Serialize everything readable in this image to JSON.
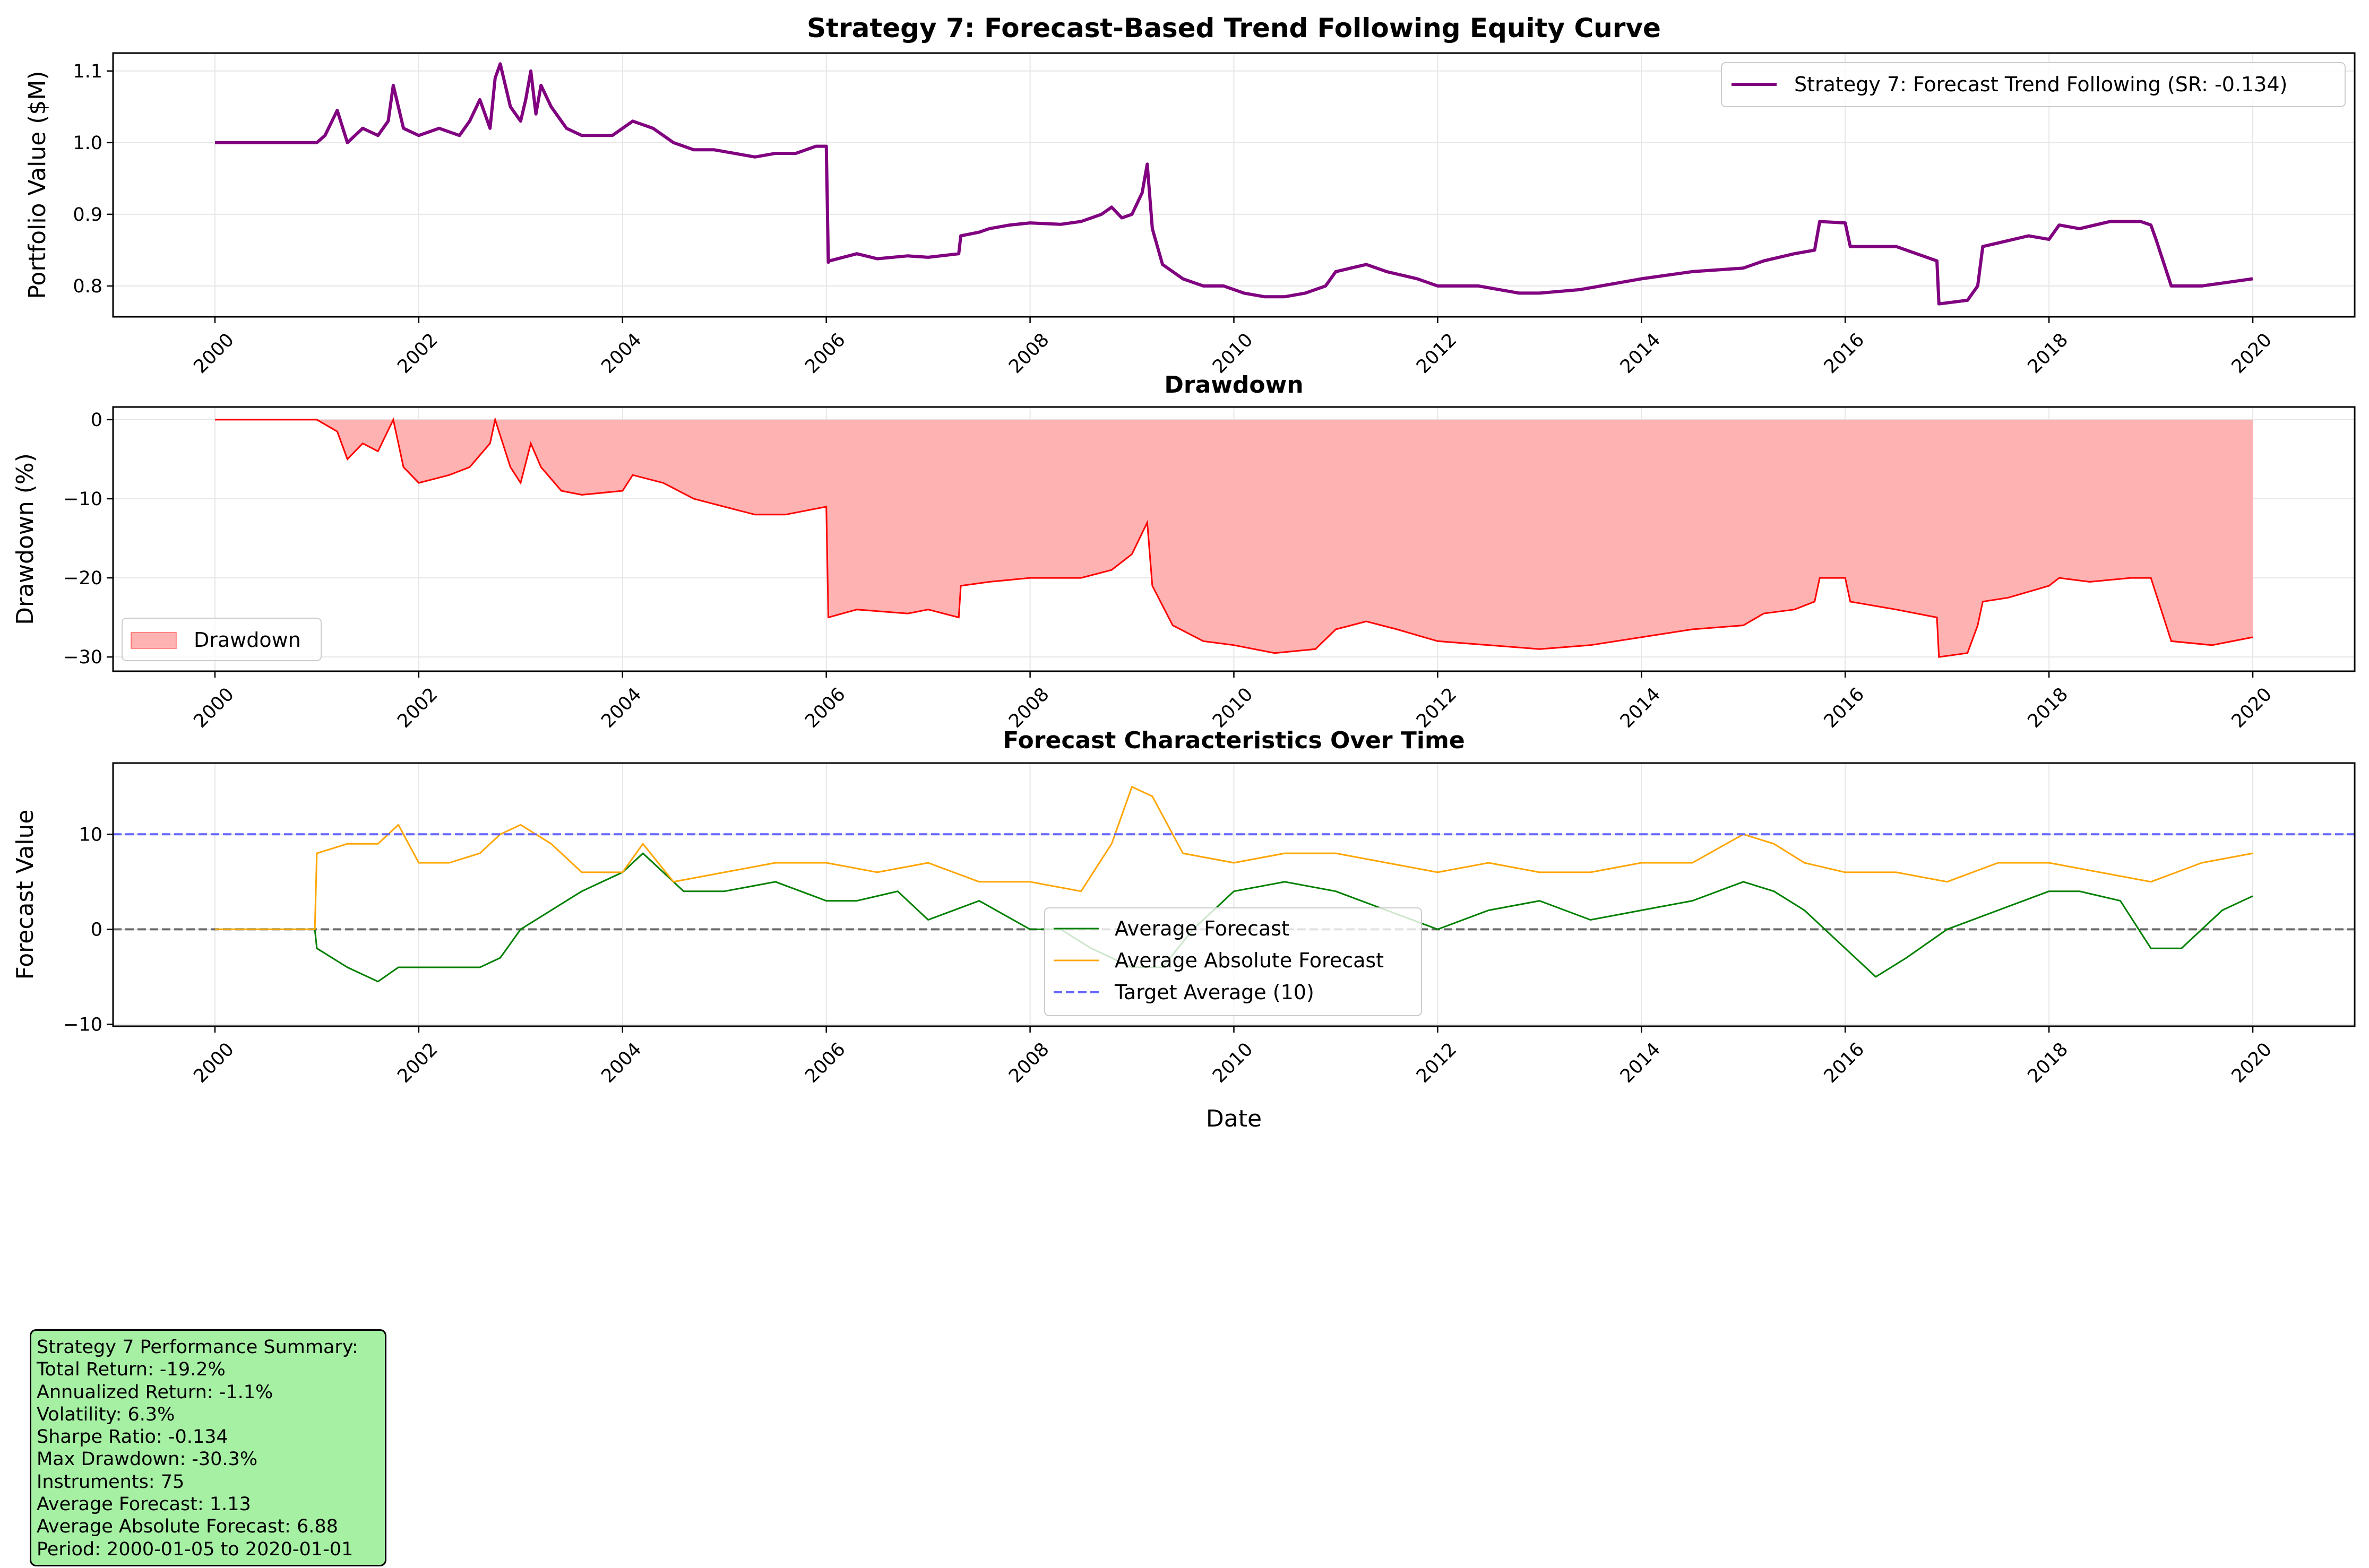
{
  "chart_data": [
    {
      "type": "line",
      "title": "Strategy 7: Forecast-Based Trend Following Equity Curve",
      "xlabel": "",
      "ylabel": "Portfolio Value ($M)",
      "xlim": [
        1999.0,
        2021.0
      ],
      "ylim": [
        0.757,
        1.125
      ],
      "x_ticks": [
        "2000",
        "2002",
        "2004",
        "2006",
        "2008",
        "2010",
        "2012",
        "2014",
        "2016",
        "2018",
        "2020"
      ],
      "y_ticks": [
        "0.8",
        "0.9",
        "1.0",
        "1.1"
      ],
      "grid": true,
      "legend_position": "top-right",
      "series": [
        {
          "name": "Strategy 7: Forecast Trend Following (SR: -0.134)",
          "color": "#800080",
          "x": [
            2000.0,
            2001.0,
            2001.08,
            2001.2,
            2001.3,
            2001.45,
            2001.6,
            2001.7,
            2001.75,
            2001.85,
            2002.0,
            2002.2,
            2002.4,
            2002.5,
            2002.6,
            2002.7,
            2002.75,
            2002.8,
            2002.9,
            2003.0,
            2003.05,
            2003.1,
            2003.15,
            2003.2,
            2003.3,
            2003.45,
            2003.6,
            2003.9,
            2004.1,
            2004.3,
            2004.5,
            2004.7,
            2004.9,
            2005.1,
            2005.3,
            2005.5,
            2005.7,
            2005.8,
            2005.9,
            2006.0,
            2006.02,
            2006.03,
            2006.3,
            2006.5,
            2006.8,
            2007.0,
            2007.3,
            2007.32,
            2007.5,
            2007.6,
            2007.8,
            2008.0,
            2008.3,
            2008.5,
            2008.7,
            2008.8,
            2008.9,
            2009.0,
            2009.1,
            2009.15,
            2009.2,
            2009.3,
            2009.5,
            2009.7,
            2009.9,
            2010.1,
            2010.3,
            2010.5,
            2010.7,
            2010.9,
            2011.0,
            2011.3,
            2011.5,
            2011.8,
            2012.0,
            2012.4,
            2012.8,
            2013.0,
            2013.4,
            2013.8,
            2014.0,
            2014.5,
            2015.0,
            2015.2,
            2015.5,
            2015.7,
            2015.75,
            2016.0,
            2016.05,
            2016.5,
            2016.9,
            2016.92,
            2017.2,
            2017.3,
            2017.35,
            2017.5,
            2017.8,
            2018.0,
            2018.1,
            2018.3,
            2018.6,
            2018.9,
            2019.0,
            2019.05,
            2019.2,
            2019.5,
            2020.0
          ],
          "values": [
            1.0,
            1.0,
            1.01,
            1.045,
            1.0,
            1.02,
            1.01,
            1.03,
            1.08,
            1.02,
            1.01,
            1.02,
            1.01,
            1.03,
            1.06,
            1.02,
            1.09,
            1.11,
            1.05,
            1.03,
            1.06,
            1.1,
            1.04,
            1.08,
            1.05,
            1.02,
            1.01,
            1.01,
            1.03,
            1.02,
            1.0,
            0.99,
            0.99,
            0.985,
            0.98,
            0.985,
            0.985,
            0.99,
            0.995,
            0.995,
            0.833,
            0.835,
            0.845,
            0.838,
            0.842,
            0.84,
            0.845,
            0.87,
            0.875,
            0.88,
            0.885,
            0.888,
            0.886,
            0.89,
            0.9,
            0.91,
            0.895,
            0.9,
            0.93,
            0.97,
            0.88,
            0.83,
            0.81,
            0.8,
            0.8,
            0.79,
            0.785,
            0.785,
            0.79,
            0.8,
            0.82,
            0.83,
            0.82,
            0.81,
            0.8,
            0.8,
            0.79,
            0.79,
            0.795,
            0.805,
            0.81,
            0.82,
            0.825,
            0.835,
            0.845,
            0.85,
            0.89,
            0.888,
            0.855,
            0.855,
            0.835,
            0.775,
            0.78,
            0.8,
            0.855,
            0.86,
            0.87,
            0.865,
            0.885,
            0.88,
            0.89,
            0.89,
            0.885,
            0.865,
            0.8,
            0.8,
            0.81
          ]
        }
      ]
    },
    {
      "type": "area",
      "title": "Drawdown",
      "xlabel": "",
      "ylabel": "Drawdown (%)",
      "xlim": [
        1999.0,
        2021.0
      ],
      "ylim": [
        -31.8,
        1.6
      ],
      "x_ticks": [
        "2000",
        "2002",
        "2004",
        "2006",
        "2008",
        "2010",
        "2012",
        "2014",
        "2016",
        "2018",
        "2020"
      ],
      "y_ticks": [
        "0",
        "−10",
        "−20",
        "−30"
      ],
      "grid": true,
      "legend_position": "lower-left",
      "series": [
        {
          "name": "Drawdown",
          "color": "#ff0000",
          "fill_color": "#ffb2b2",
          "x": [
            2000.0,
            2001.0,
            2001.2,
            2001.3,
            2001.45,
            2001.6,
            2001.75,
            2001.85,
            2002.0,
            2002.3,
            2002.5,
            2002.7,
            2002.75,
            2002.9,
            2003.0,
            2003.1,
            2003.2,
            2003.4,
            2003.6,
            2004.0,
            2004.1,
            2004.4,
            2004.7,
            2005.0,
            2005.3,
            2005.6,
            2005.8,
            2006.0,
            2006.02,
            2006.3,
            2006.8,
            2007.0,
            2007.3,
            2007.32,
            2007.6,
            2008.0,
            2008.5,
            2008.8,
            2009.0,
            2009.15,
            2009.2,
            2009.4,
            2009.7,
            2010.0,
            2010.4,
            2010.8,
            2011.0,
            2011.3,
            2011.6,
            2012.0,
            2012.5,
            2013.0,
            2013.5,
            2014.0,
            2014.5,
            2015.0,
            2015.2,
            2015.5,
            2015.7,
            2015.75,
            2016.0,
            2016.05,
            2016.5,
            2016.9,
            2016.92,
            2017.2,
            2017.3,
            2017.35,
            2017.6,
            2018.0,
            2018.1,
            2018.4,
            2018.8,
            2019.0,
            2019.05,
            2019.2,
            2019.6,
            2020.0
          ],
          "values": [
            0,
            0,
            -1.5,
            -5,
            -3,
            -4,
            0,
            -6,
            -8,
            -7,
            -6,
            -3,
            0,
            -6,
            -8,
            -3,
            -6,
            -9,
            -9.5,
            -9,
            -7,
            -8,
            -10,
            -11,
            -12,
            -12,
            -11.5,
            -11,
            -25,
            -24,
            -24.5,
            -24,
            -25,
            -21,
            -20.5,
            -20,
            -20,
            -19,
            -17,
            -13,
            -21,
            -26,
            -28,
            -28.5,
            -29.5,
            -29,
            -26.5,
            -25.5,
            -26.5,
            -28,
            -28.5,
            -29,
            -28.5,
            -27.5,
            -26.5,
            -26,
            -24.5,
            -24,
            -23,
            -20,
            -20,
            -23,
            -24,
            -25,
            -30,
            -29.5,
            -26,
            -23,
            -22.5,
            -21,
            -20,
            -20.5,
            -20,
            -20,
            -22,
            -28,
            -28.5,
            -27.5
          ]
        }
      ]
    },
    {
      "type": "line",
      "title": "Forecast Characteristics Over Time",
      "xlabel": "Date",
      "ylabel": "Forecast Value",
      "xlim": [
        1999.0,
        2021.0
      ],
      "ylim": [
        -10.2,
        17.5
      ],
      "x_ticks": [
        "2000",
        "2002",
        "2004",
        "2006",
        "2008",
        "2010",
        "2012",
        "2014",
        "2016",
        "2018",
        "2020"
      ],
      "y_ticks": [
        "−10",
        "0",
        "10"
      ],
      "grid": true,
      "legend_position": "lower-center",
      "series": [
        {
          "name": "Average Forecast",
          "color": "#008000",
          "x": [
            2000.0,
            2000.98,
            2001.0,
            2001.3,
            2001.6,
            2001.8,
            2002.0,
            2002.3,
            2002.6,
            2002.8,
            2003.0,
            2003.3,
            2003.6,
            2004.0,
            2004.2,
            2004.4,
            2004.6,
            2005.0,
            2005.5,
            2006.0,
            2006.3,
            2006.7,
            2007.0,
            2007.5,
            2008.0,
            2008.3,
            2008.6,
            2009.0,
            2009.3,
            2009.6,
            2010.0,
            2010.5,
            2011.0,
            2011.5,
            2012.0,
            2012.5,
            2013.0,
            2013.5,
            2014.0,
            2014.5,
            2015.0,
            2015.3,
            2015.6,
            2016.0,
            2016.3,
            2016.6,
            2017.0,
            2017.5,
            2018.0,
            2018.3,
            2018.7,
            2019.0,
            2019.3,
            2019.7,
            2020.0
          ],
          "values": [
            0,
            0,
            -2,
            -4,
            -5.5,
            -4,
            -4,
            -4,
            -4,
            -3,
            0,
            2,
            4,
            6,
            8,
            6,
            4,
            4,
            5,
            3,
            3,
            4,
            1,
            3,
            0,
            0,
            -2,
            -4,
            -4,
            0,
            4,
            5,
            4,
            2,
            0,
            2,
            3,
            1,
            2,
            3,
            5,
            4,
            2,
            -2,
            -5,
            -3,
            0,
            2,
            4,
            4,
            3,
            -2,
            -2,
            2,
            3.5
          ]
        },
        {
          "name": "Average Absolute Forecast",
          "color": "#ffa500",
          "x": [
            2000.0,
            2000.98,
            2001.0,
            2001.3,
            2001.6,
            2001.8,
            2002.0,
            2002.3,
            2002.6,
            2002.8,
            2003.0,
            2003.3,
            2003.6,
            2004.0,
            2004.2,
            2004.5,
            2005.0,
            2005.5,
            2006.0,
            2006.5,
            2007.0,
            2007.5,
            2008.0,
            2008.5,
            2008.8,
            2009.0,
            2009.2,
            2009.5,
            2010.0,
            2010.5,
            2011.0,
            2011.5,
            2012.0,
            2012.5,
            2013.0,
            2013.5,
            2014.0,
            2014.5,
            2015.0,
            2015.3,
            2015.6,
            2016.0,
            2016.5,
            2017.0,
            2017.5,
            2018.0,
            2018.5,
            2019.0,
            2019.5,
            2020.0
          ],
          "values": [
            0,
            0,
            8,
            9,
            9,
            11,
            7,
            7,
            8,
            10,
            11,
            9,
            6,
            6,
            9,
            5,
            6,
            7,
            7,
            6,
            7,
            5,
            5,
            4,
            9,
            15,
            14,
            8,
            7,
            8,
            8,
            7,
            6,
            7,
            6,
            6,
            7,
            7,
            10,
            9,
            7,
            6,
            6,
            5,
            7,
            7,
            6,
            5,
            7,
            8
          ]
        },
        {
          "name": "Target Average (10)",
          "color": "#6666ff",
          "dashed": true,
          "x": [
            1999.0,
            2021.0
          ],
          "values": [
            10,
            10
          ]
        }
      ]
    }
  ],
  "summary": {
    "lines": [
      "Strategy 7 Performance Summary:",
      "Total Return: -19.2%",
      "Annualized Return: -1.1%",
      "Volatility: 6.3%",
      "Sharpe Ratio: -0.134",
      "Max Drawdown: -30.3%",
      "Instruments: 75",
      "Average Forecast: 1.13",
      "Average Absolute Forecast: 6.88",
      "Period: 2000-01-05 to 2020-01-01"
    ],
    "background_color": "#a6f0a3"
  }
}
